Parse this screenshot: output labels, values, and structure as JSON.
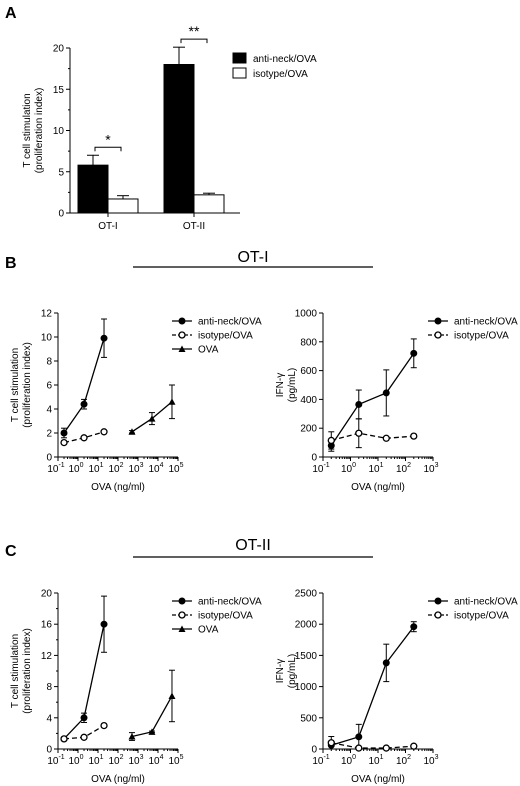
{
  "panels": {
    "A": "A",
    "B": "B",
    "C": "C",
    "B_header": "OT-I",
    "C_header": "OT-II"
  },
  "legend_labels": {
    "anti_neck": "anti-neck/OVA",
    "isotype": "isotype/OVA",
    "ova": "OVA"
  },
  "chart_data": [
    {
      "id": "A",
      "type": "bar",
      "ylabel_line1": "T cell stimulation",
      "ylabel_line2": "(proliferation index)",
      "ylim": [
        0,
        20
      ],
      "yticks": [
        "0",
        "5",
        "10",
        "15",
        "20"
      ],
      "categories": [
        "OT-I",
        "OT-II"
      ],
      "series": [
        {
          "name": "anti-neck/OVA",
          "values": [
            5.8,
            18.0
          ],
          "errors": [
            1.2,
            2.1
          ],
          "color": "#000000"
        },
        {
          "name": "isotype/OVA",
          "values": [
            1.7,
            2.2
          ],
          "errors": [
            0.4,
            0.2
          ],
          "color": "#ffffff"
        }
      ],
      "significance": [
        "*",
        "**"
      ]
    },
    {
      "id": "B-left",
      "type": "line",
      "xlabel": "OVA (ng/ml)",
      "ylabel_line1": "T cell stimulation",
      "ylabel_line2": "(proliferation index)",
      "ylim": [
        0,
        12
      ],
      "yticks": [
        "0",
        "2",
        "4",
        "6",
        "8",
        "10",
        "12"
      ],
      "xscale": "log",
      "xlim": [
        0.1,
        100000
      ],
      "xtick_exps": [
        "-1",
        "0",
        "1",
        "2",
        "3",
        "4",
        "5"
      ],
      "series": [
        {
          "name": "anti-neck/OVA",
          "x": [
            0.2,
            2,
            20
          ],
          "y": [
            2.0,
            4.4,
            9.9
          ],
          "err": [
            0.4,
            0.4,
            1.6
          ],
          "marker": "filled-circle",
          "dash": false
        },
        {
          "name": "isotype/OVA",
          "x": [
            0.2,
            2,
            20
          ],
          "y": [
            1.2,
            1.6,
            2.1
          ],
          "err": [
            0.1,
            0.1,
            0.1
          ],
          "marker": "open-circle",
          "dash": true
        },
        {
          "name": "OVA",
          "x": [
            500,
            5000,
            50000
          ],
          "y": [
            2.1,
            3.2,
            4.6
          ],
          "err": [
            0.1,
            0.5,
            1.4
          ],
          "marker": "triangle",
          "dash": false
        }
      ]
    },
    {
      "id": "B-right",
      "type": "line",
      "xlabel": "OVA (ng/ml)",
      "ylabel_line1": "IFN-γ",
      "ylabel_line2": "(pg/mL)",
      "ylim": [
        0,
        1000
      ],
      "yticks": [
        "0",
        "200",
        "400",
        "600",
        "800",
        "1000"
      ],
      "xscale": "log",
      "xlim": [
        0.1,
        1000
      ],
      "xtick_exps": [
        "-1",
        "0",
        "1",
        "2",
        "3"
      ],
      "series": [
        {
          "name": "anti-neck/OVA",
          "x": [
            0.2,
            2,
            20,
            200
          ],
          "y": [
            80,
            365,
            445,
            720
          ],
          "err": [
            40,
            100,
            160,
            100
          ],
          "marker": "filled-circle",
          "dash": false
        },
        {
          "name": "isotype/OVA",
          "x": [
            0.2,
            2,
            20,
            200
          ],
          "y": [
            115,
            165,
            130,
            145
          ],
          "err": [
            60,
            100,
            10,
            10
          ],
          "marker": "open-circle",
          "dash": true
        }
      ]
    },
    {
      "id": "C-left",
      "type": "line",
      "xlabel": "OVA (ng/ml)",
      "ylabel_line1": "T cell stimulation",
      "ylabel_line2": "(proliferation index)",
      "ylim": [
        0,
        20
      ],
      "yticks": [
        "0",
        "4",
        "8",
        "12",
        "16",
        "20"
      ],
      "ytick_values": [
        0,
        4,
        8,
        12,
        16,
        20
      ],
      "yminor": 2,
      "xscale": "log",
      "xlim": [
        0.1,
        100000
      ],
      "xtick_exps": [
        "-1",
        "0",
        "1",
        "2",
        "3",
        "4",
        "5"
      ],
      "series": [
        {
          "name": "anti-neck/OVA",
          "x": [
            0.2,
            2,
            20
          ],
          "y": [
            1.3,
            4.0,
            16.0
          ],
          "err": [
            0.2,
            0.6,
            3.6
          ],
          "marker": "filled-circle",
          "dash": false
        },
        {
          "name": "isotype/OVA",
          "x": [
            0.2,
            2,
            20
          ],
          "y": [
            1.3,
            1.5,
            3.0
          ],
          "err": [
            0.1,
            0.1,
            0.2
          ],
          "marker": "open-circle",
          "dash": true
        },
        {
          "name": "OVA",
          "x": [
            500,
            5000,
            50000
          ],
          "y": [
            1.6,
            2.2,
            6.8
          ],
          "err": [
            0.5,
            0.1,
            3.3
          ],
          "marker": "triangle",
          "dash": false
        }
      ]
    },
    {
      "id": "C-right",
      "type": "line",
      "xlabel": "OVA (ng/ml)",
      "ylabel_line1": "IFN-γ",
      "ylabel_line2": "(pg/mL)",
      "ylim": [
        0,
        2500
      ],
      "yticks": [
        "0",
        "500",
        "1000",
        "1500",
        "2000",
        "2500"
      ],
      "xscale": "log",
      "xlim": [
        0.1,
        1000
      ],
      "xtick_exps": [
        "-1",
        "0",
        "1",
        "2",
        "3"
      ],
      "series": [
        {
          "name": "anti-neck/OVA",
          "x": [
            0.2,
            2,
            20,
            200
          ],
          "y": [
            60,
            195,
            1380,
            1960
          ],
          "err": [
            140,
            200,
            300,
            80
          ],
          "marker": "filled-circle",
          "dash": false
        },
        {
          "name": "isotype/OVA",
          "x": [
            0.2,
            2,
            20,
            200
          ],
          "y": [
            100,
            15,
            15,
            45
          ],
          "err": [
            20,
            5,
            5,
            15
          ],
          "marker": "open-circle",
          "dash": true
        }
      ]
    }
  ]
}
